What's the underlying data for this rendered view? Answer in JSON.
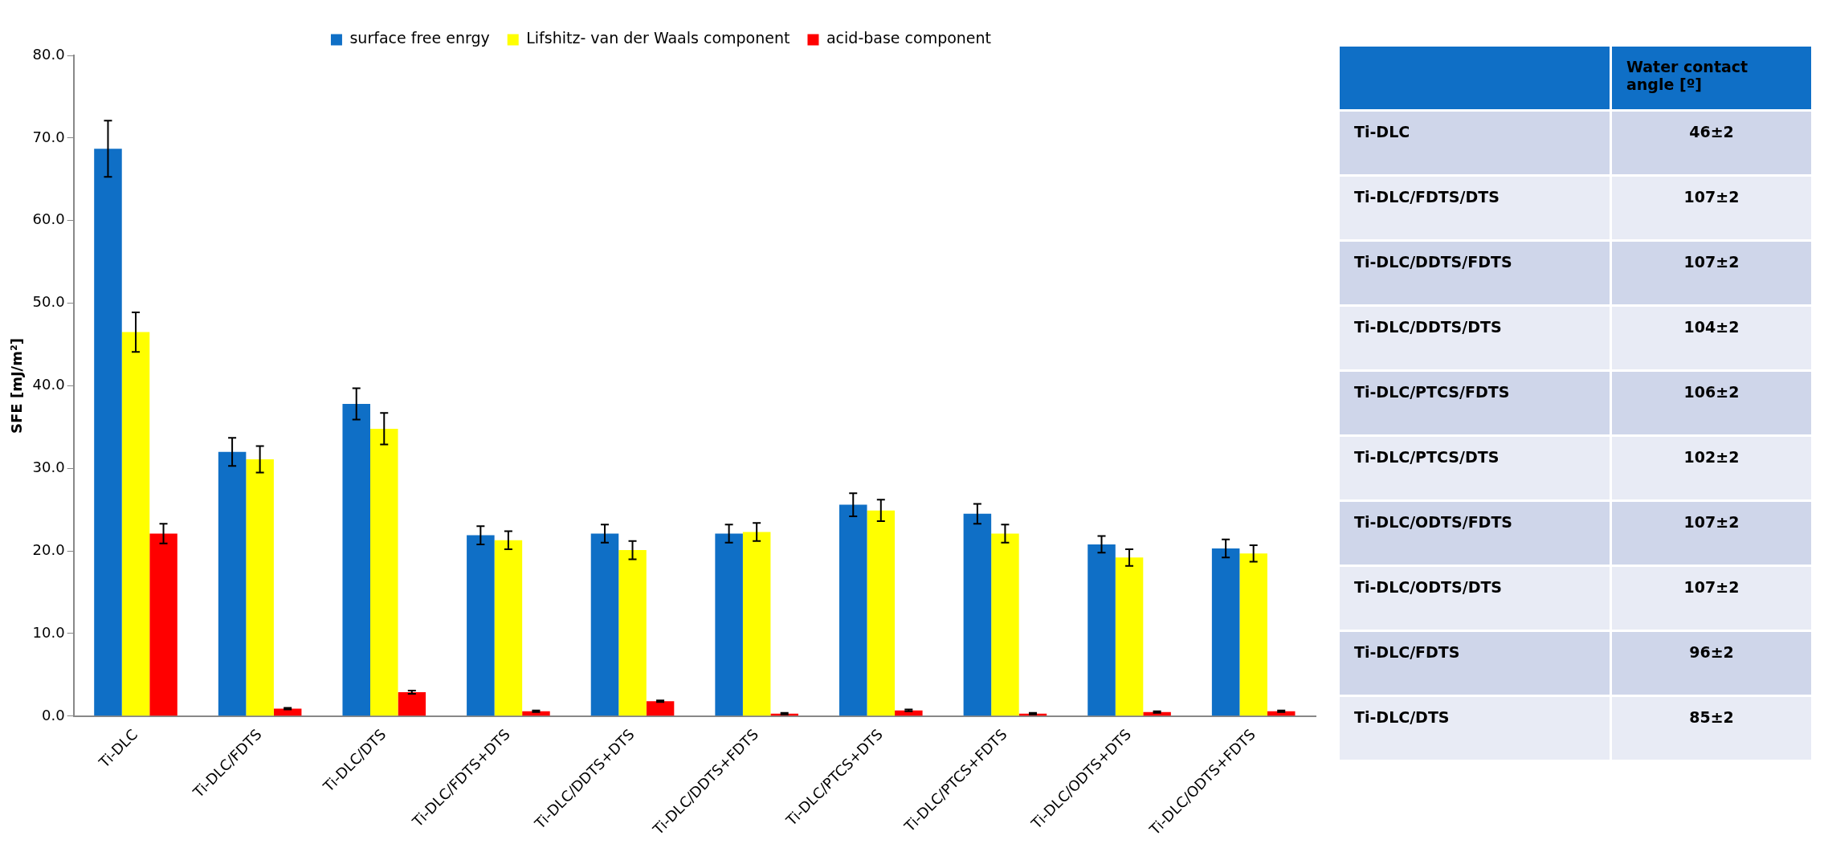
{
  "chart_data": [
    {
      "type": "bar",
      "ylabel": "SFE [mJ/m²]",
      "categories": [
        "Ti-DLC",
        "Ti-DLC/FDTS",
        "Ti-DLC/DTS",
        "Ti-DLC/FDTS+DTS",
        "Ti-DLC/DDTS+DTS",
        "Ti-DLC/DDTS+FDTS",
        "Ti-DLC/PTCS+DTS",
        "Ti-DLC/PTCS+FDTS",
        "Ti-DLC/ODTS+DTS",
        "Ti-DLC/ODTS+FDTS"
      ],
      "series": [
        {
          "name": "surface free enrgy",
          "color": "#0f6fc6",
          "values": [
            68.7,
            32.0,
            37.8,
            21.9,
            22.1,
            22.1,
            25.6,
            24.5,
            20.8,
            20.3
          ],
          "errors": [
            3.4,
            1.7,
            1.9,
            1.1,
            1.1,
            1.1,
            1.4,
            1.2,
            1.0,
            1.1
          ]
        },
        {
          "name": "Lifshitz- van der Waals component",
          "color": "#ffff00",
          "values": [
            46.5,
            31.1,
            34.8,
            21.3,
            20.1,
            22.3,
            24.9,
            22.1,
            19.2,
            19.7
          ],
          "errors": [
            2.4,
            1.6,
            1.9,
            1.1,
            1.1,
            1.1,
            1.3,
            1.1,
            1.0,
            1.0
          ]
        },
        {
          "name": "acid-base component",
          "color": "#ff0000",
          "values": [
            22.1,
            0.9,
            2.9,
            0.6,
            1.8,
            0.3,
            0.7,
            0.3,
            0.5,
            0.6
          ],
          "errors": [
            1.2,
            0.1,
            0.2,
            0.1,
            0.1,
            0.1,
            0.1,
            0.1,
            0.1,
            0.1
          ]
        }
      ],
      "ylim": [
        0,
        80
      ],
      "yticks": [
        {
          "value": 0,
          "label": "0.0"
        },
        {
          "value": 10,
          "label": "10.0"
        },
        {
          "value": 20,
          "label": "20.0"
        },
        {
          "value": 30,
          "label": "30.0"
        },
        {
          "value": 40,
          "label": "40.0"
        },
        {
          "value": 50,
          "label": "50.0"
        },
        {
          "value": 60,
          "label": "60.0"
        },
        {
          "value": 70,
          "label": "70.0"
        },
        {
          "value": 80,
          "label": "80.0"
        }
      ],
      "grid": false,
      "legend": "top"
    },
    {
      "type": "other",
      "title": "Water contact angle [º]",
      "categories": [
        "Ti-DLC",
        "Ti-DLC/FDTS/DTS",
        "Ti-DLC/DDTS/FDTS",
        "Ti-DLC/DDTS/DTS",
        "Ti-DLC/PTCS/FDTS",
        "Ti-DLC/PTCS/DTS",
        "Ti-DLC/ODTS/FDTS",
        "Ti-DLC/ODTS/DTS",
        "Ti-DLC/FDTS",
        "Ti-DLC/DTS"
      ],
      "value_labels": [
        "46±2",
        "107±2",
        "107±2",
        "104±2",
        "106±2",
        "102±2",
        "107±2",
        "107±2",
        "96±2",
        "85±2"
      ]
    }
  ]
}
